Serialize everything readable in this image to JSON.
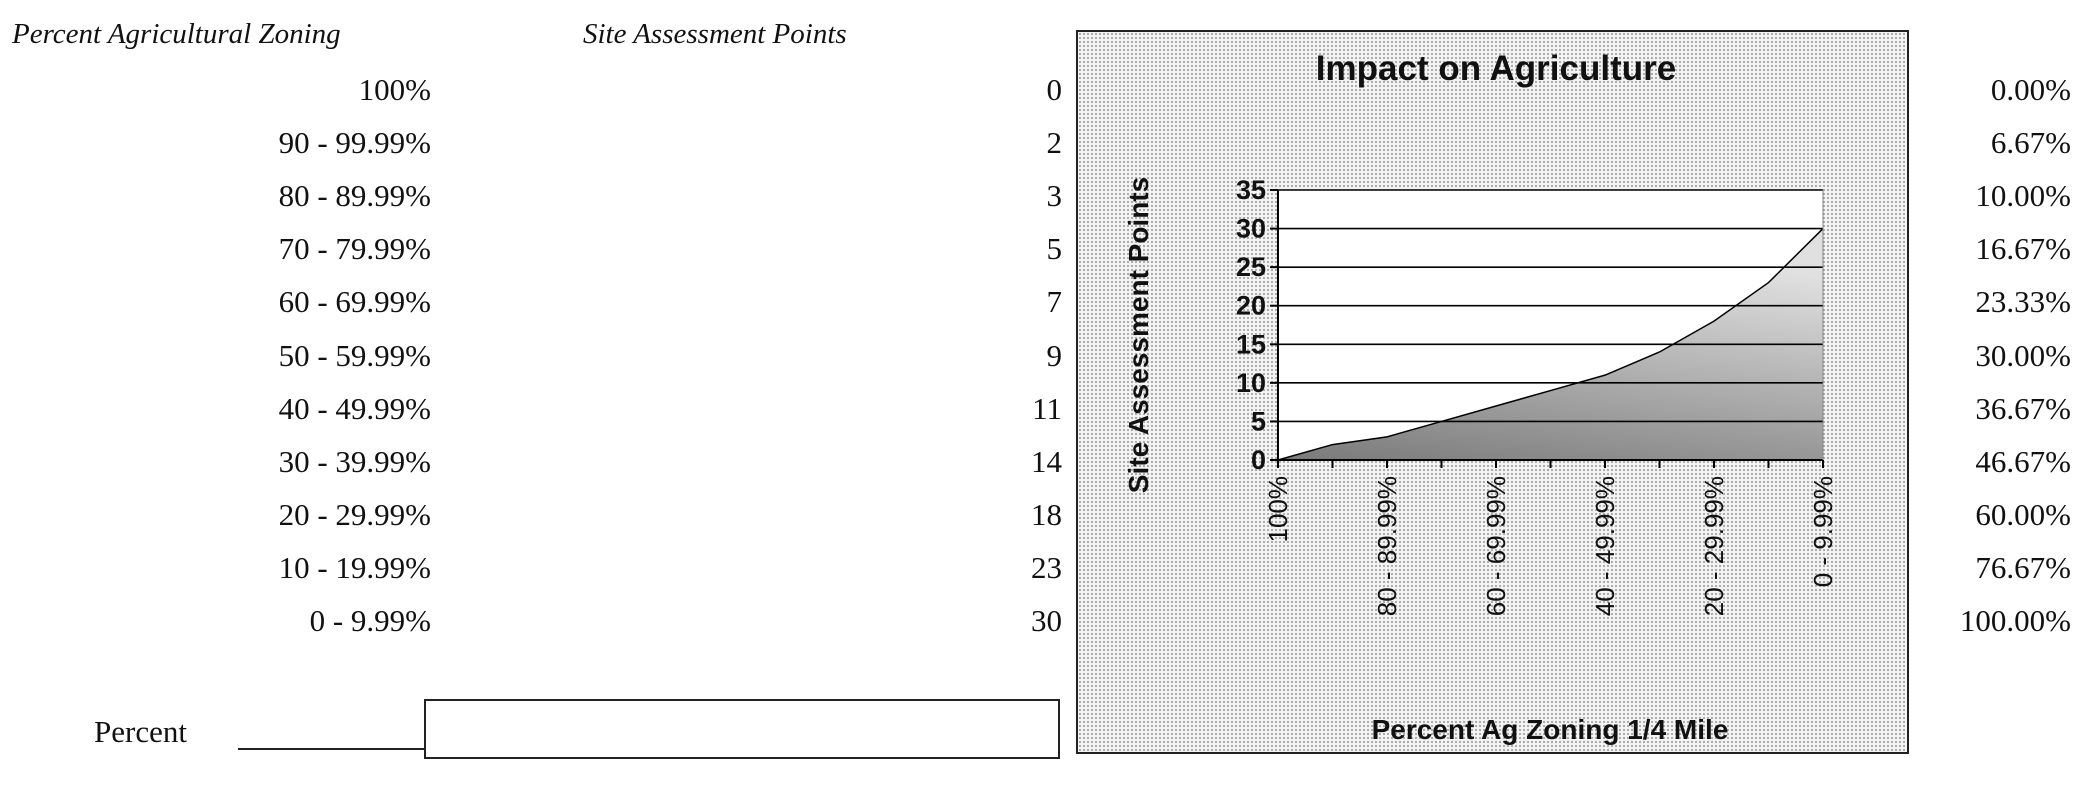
{
  "headers": {
    "percent_ag_zoning": "Percent Agricultural Zoning",
    "site_assessment_points": "Site Assessment Points"
  },
  "table": {
    "rows": [
      {
        "range": "100%",
        "points": "0",
        "percent": "0.00%"
      },
      {
        "range": "90 - 99.99%",
        "points": "2",
        "percent": "6.67%"
      },
      {
        "range": "80 - 89.99%",
        "points": "3",
        "percent": "10.00%"
      },
      {
        "range": "70 - 79.99%",
        "points": "5",
        "percent": "16.67%"
      },
      {
        "range": "60 - 69.99%",
        "points": "7",
        "percent": "23.33%"
      },
      {
        "range": "50 - 59.99%",
        "points": "9",
        "percent": "30.00%"
      },
      {
        "range": "40 - 49.99%",
        "points": "11",
        "percent": "36.67%"
      },
      {
        "range": "30 - 39.99%",
        "points": "14",
        "percent": "46.67%"
      },
      {
        "range": "20 - 29.99%",
        "points": "18",
        "percent": "60.00%"
      },
      {
        "range": "10 - 19.99%",
        "points": "23",
        "percent": "76.67%"
      },
      {
        "range": "0 - 9.99%",
        "points": "30",
        "percent": "100.00%"
      }
    ]
  },
  "input": {
    "label": "Percent",
    "value": ""
  },
  "chart_data": {
    "type": "area",
    "title": "Impact on Agriculture",
    "xlabel": "Percent Ag Zoning 1/4 Mile",
    "ylabel": "Site Assessment Points",
    "categories": [
      "100%",
      "90 - 99.99%",
      "80 - 89.99%",
      "70 - 79.99%",
      "60 - 69.99%",
      "50 - 59.99%",
      "40 - 49.99%",
      "30 - 39.99%",
      "20 - 29.99%",
      "10 - 19.99%",
      "0 - 9.99%"
    ],
    "shown_tick_labels": [
      "100%",
      "80 - 89.99%",
      "60 - 69.99%",
      "40 - 49.99%",
      "20 - 29.99%",
      "0 - 9.99%"
    ],
    "values": [
      0,
      2,
      3,
      5,
      7,
      9,
      11,
      14,
      18,
      23,
      30
    ],
    "ylim": [
      0,
      35
    ],
    "yticks": [
      0,
      5,
      10,
      15,
      20,
      25,
      30,
      35
    ],
    "grid": true,
    "legend": "none",
    "colors": {
      "fill_dark": "#7a7a7a",
      "fill_light": "#e0e0e0",
      "line": "#000000"
    }
  }
}
